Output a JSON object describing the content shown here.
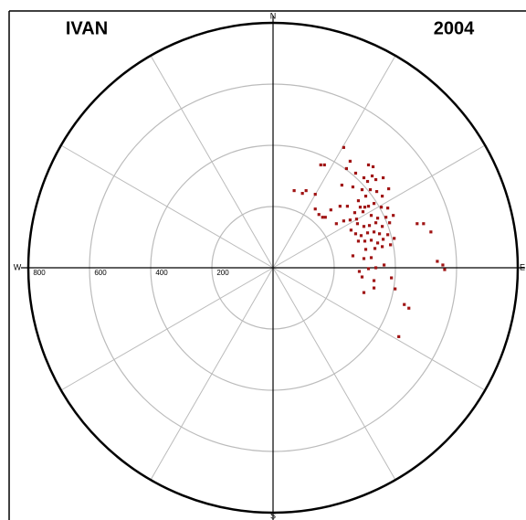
{
  "chart_data": {
    "type": "polar-scatter",
    "title": "IVAN",
    "subtitle": "2004",
    "directions": [
      "N",
      "E",
      "S",
      "W"
    ],
    "rlim": [
      0,
      800
    ],
    "rticks": [
      200,
      400,
      600,
      800
    ],
    "grid": true,
    "color": "#a01414",
    "x": [
      231,
      156,
      168,
      252,
      240,
      312,
      327,
      270,
      297,
      324,
      336,
      309,
      360,
      69,
      108,
      138,
      225,
      261,
      291,
      318,
      339,
      378,
      357,
      303,
      279,
      243,
      285,
      300,
      312,
      330,
      354,
      375,
      267,
      294,
      321,
      342,
      369,
      393,
      138,
      150,
      162,
      207,
      231,
      252,
      276,
      297,
      315,
      336,
      357,
      381,
      171,
      255,
      270,
      288,
      309,
      330,
      348,
      375,
      396,
      279,
      300,
      321,
      342,
      360,
      471,
      492,
      516,
      303,
      333,
      357,
      384,
      261,
      297,
      321,
      537,
      555,
      561,
      282,
      312,
      336,
      363,
      387,
      291,
      330,
      297,
      330,
      429,
      444,
      411,
      399,
      273,
      219,
      189,
      96
    ],
    "y": [
      393,
      336,
      336,
      348,
      324,
      336,
      330,
      309,
      294,
      300,
      288,
      282,
      294,
      252,
      252,
      240,
      270,
      264,
      255,
      255,
      249,
      258,
      234,
      234,
      219,
      201,
      198,
      198,
      201,
      210,
      198,
      195,
      180,
      183,
      171,
      162,
      165,
      171,
      192,
      174,
      165,
      144,
      153,
      156,
      144,
      135,
      138,
      147,
      135,
      147,
      165,
      123,
      111,
      105,
      114,
      117,
      111,
      108,
      96,
      87,
      87,
      90,
      81,
      93,
      144,
      144,
      117,
      60,
      63,
      69,
      75,
      39,
      30,
      33,
      21,
      9,
      -6,
      -12,
      -3,
      0,
      9,
      -33,
      -30,
      -42,
      -81,
      -66,
      -120,
      -132,
      -225,
      -69,
      159,
      201,
      189,
      243
    ]
  }
}
